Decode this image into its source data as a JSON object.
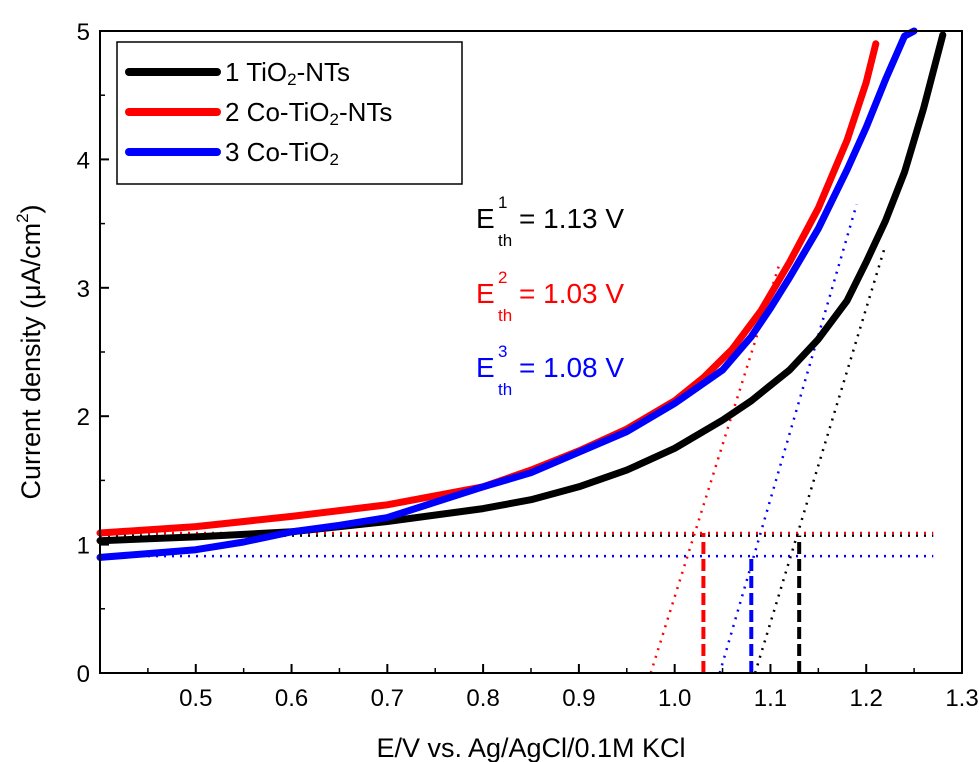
{
  "chart_data": {
    "type": "line",
    "title": "",
    "xlabel": "E/V vs. Ag/AgCl/0.1M KCl",
    "ylabel": "Current density (μA/cm²)",
    "ylabel_parts": {
      "main": "Current density (μA/cm",
      "sup": "2",
      "end": ")"
    },
    "xlim": [
      0.4,
      1.3
    ],
    "ylim": [
      0,
      5
    ],
    "xticks": [
      "0.5",
      "0.6",
      "0.7",
      "0.8",
      "0.9",
      "1.0",
      "1.1",
      "1.2",
      "1.3"
    ],
    "yticks": [
      "0",
      "1",
      "2",
      "3",
      "4",
      "5"
    ],
    "grid": false,
    "legend_position": "top-left",
    "series": [
      {
        "name": "1 TiO2-NTs",
        "label_parts": [
          "1 TiO",
          "2",
          "-NTs"
        ],
        "color": "#000000",
        "x": [
          0.4,
          0.5,
          0.6,
          0.7,
          0.8,
          0.85,
          0.9,
          0.95,
          1.0,
          1.05,
          1.08,
          1.1,
          1.12,
          1.15,
          1.18,
          1.2,
          1.22,
          1.24,
          1.26,
          1.28
        ],
        "y": [
          1.03,
          1.06,
          1.1,
          1.18,
          1.28,
          1.35,
          1.45,
          1.58,
          1.75,
          1.97,
          2.12,
          2.24,
          2.36,
          2.6,
          2.9,
          3.2,
          3.52,
          3.9,
          4.4,
          4.97
        ],
        "threshold": {
          "x": 1.13,
          "baseline": 1.07,
          "tangent_x": [
            1.084,
            1.22
          ],
          "tangent_y": [
            0.0,
            3.33
          ]
        }
      },
      {
        "name": "2 Co-TiO2-NTs",
        "label_parts": [
          "2 Co-TiO",
          "2",
          "-NTs"
        ],
        "color": "#ff0000",
        "x": [
          0.4,
          0.5,
          0.6,
          0.7,
          0.8,
          0.85,
          0.9,
          0.95,
          1.0,
          1.03,
          1.06,
          1.09,
          1.12,
          1.15,
          1.18,
          1.2,
          1.21
        ],
        "y": [
          1.09,
          1.14,
          1.22,
          1.31,
          1.45,
          1.58,
          1.73,
          1.9,
          2.12,
          2.3,
          2.52,
          2.82,
          3.2,
          3.62,
          4.15,
          4.6,
          4.9
        ],
        "threshold": {
          "x": 1.03,
          "baseline": 1.09,
          "tangent_x": [
            0.975,
            1.11
          ],
          "tangent_y": [
            0.0,
            3.2
          ]
        }
      },
      {
        "name": "3 Co-TiO2",
        "label_parts": [
          "3 Co-TiO",
          "2",
          ""
        ],
        "color": "#0000ff",
        "x": [
          0.4,
          0.45,
          0.5,
          0.55,
          0.6,
          0.65,
          0.7,
          0.75,
          0.8,
          0.85,
          0.9,
          0.95,
          1.0,
          1.05,
          1.08,
          1.1,
          1.12,
          1.15,
          1.18,
          1.2,
          1.22,
          1.24,
          1.25
        ],
        "y": [
          0.9,
          0.93,
          0.96,
          1.02,
          1.1,
          1.15,
          1.21,
          1.33,
          1.45,
          1.56,
          1.72,
          1.88,
          2.1,
          2.36,
          2.62,
          2.84,
          3.08,
          3.46,
          3.92,
          4.25,
          4.62,
          4.96,
          5.0
        ],
        "threshold": {
          "x": 1.08,
          "baseline": 0.91,
          "tangent_x": [
            1.047,
            1.19
          ],
          "tangent_y": [
            0.0,
            3.65
          ]
        }
      }
    ],
    "annotations": [
      {
        "base": "E",
        "sup": "1",
        "sub": "th",
        "text": "= 1.13 V",
        "color": "#000000"
      },
      {
        "base": "E",
        "sup": "2",
        "sub": "th",
        "text": "= 1.03 V",
        "color": "#ff0000"
      },
      {
        "base": "E",
        "sup": "3",
        "sub": "th",
        "text": "= 1.08 V",
        "color": "#0000ff"
      }
    ]
  }
}
